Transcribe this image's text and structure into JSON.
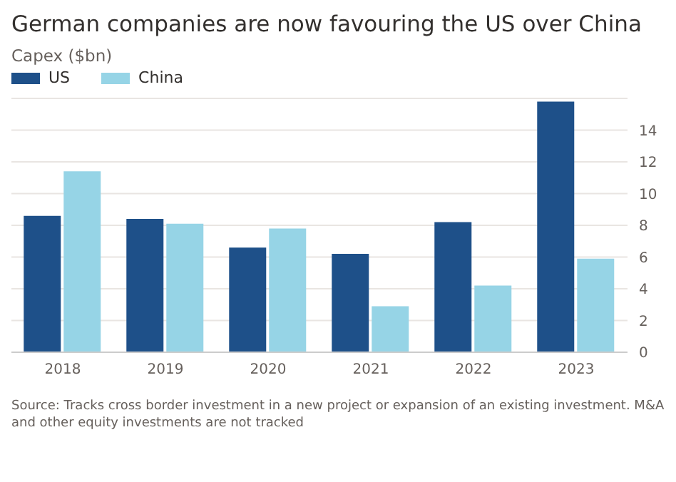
{
  "chart_data": {
    "type": "bar",
    "title": "German companies are now favouring the US over China",
    "subtitle": "Capex ($bn)",
    "categories": [
      "2018",
      "2019",
      "2020",
      "2021",
      "2022",
      "2023"
    ],
    "series": [
      {
        "name": "US",
        "color": "#1e5089",
        "values": [
          8.6,
          8.4,
          6.6,
          6.2,
          8.2,
          15.8
        ]
      },
      {
        "name": "China",
        "color": "#96d4e6",
        "values": [
          11.4,
          8.1,
          7.8,
          2.9,
          4.2,
          5.9
        ]
      }
    ],
    "ylim": [
      0,
      16
    ],
    "yticks": [
      0,
      2,
      4,
      6,
      8,
      10,
      12,
      14
    ],
    "grid": "y",
    "legend": "top left",
    "annotations": [
      "Source: Tracks cross border investment in a new project or expansion of an existing investment. M&A and other equity investments are not tracked"
    ]
  }
}
